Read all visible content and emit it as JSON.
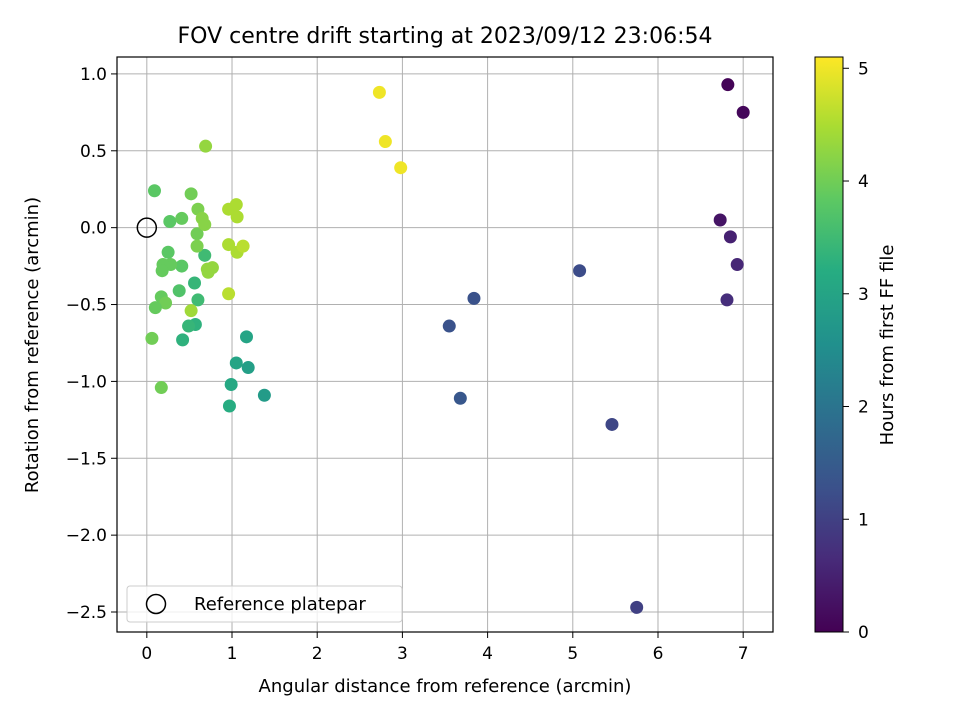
{
  "chart_data": {
    "type": "scatter",
    "title": "FOV centre drift starting at 2023/09/12 23:06:54",
    "xlabel": "Angular distance from reference (arcmin)",
    "ylabel": "Rotation from reference (arcmin)",
    "xlim": [
      -0.35,
      7.35
    ],
    "ylim": [
      -2.63,
      1.11
    ],
    "xticks": [
      0,
      1,
      2,
      3,
      4,
      5,
      6,
      7
    ],
    "yticks": [
      1.0,
      0.5,
      0.0,
      -0.5,
      -1.0,
      -1.5,
      -2.0,
      -2.5
    ],
    "ytick_labels": [
      "1.0",
      "0.5",
      "0.0",
      "−0.5",
      "−1.0",
      "−1.5",
      "−2.0",
      "−2.5"
    ],
    "grid": true,
    "legend": {
      "position": "lower-left",
      "entries": [
        "Reference platepar"
      ]
    },
    "reference_point": {
      "x": 0,
      "y": 0
    },
    "colorbar": {
      "label": "Hours from first FF file",
      "colormap": "viridis",
      "range": [
        0,
        5.1
      ],
      "ticks": [
        0,
        1,
        2,
        3,
        4,
        5
      ]
    },
    "points": [
      {
        "x": 6.82,
        "y": 0.93,
        "c": 0.05
      },
      {
        "x": 7.0,
        "y": 0.75,
        "c": 0.1
      },
      {
        "x": 6.73,
        "y": 0.05,
        "c": 0.3
      },
      {
        "x": 6.85,
        "y": -0.06,
        "c": 0.5
      },
      {
        "x": 6.93,
        "y": -0.24,
        "c": 0.6
      },
      {
        "x": 6.81,
        "y": -0.47,
        "c": 0.7
      },
      {
        "x": 5.75,
        "y": -2.47,
        "c": 1.0
      },
      {
        "x": 5.46,
        "y": -1.28,
        "c": 1.1
      },
      {
        "x": 5.08,
        "y": -0.28,
        "c": 1.2
      },
      {
        "x": 3.84,
        "y": -0.46,
        "c": 1.3
      },
      {
        "x": 3.55,
        "y": -0.64,
        "c": 1.3
      },
      {
        "x": 3.68,
        "y": -1.11,
        "c": 1.4
      },
      {
        "x": 1.38,
        "y": -1.09,
        "c": 2.8
      },
      {
        "x": 1.19,
        "y": -0.91,
        "c": 2.9
      },
      {
        "x": 1.05,
        "y": -0.88,
        "c": 3.0
      },
      {
        "x": 0.99,
        "y": -1.02,
        "c": 3.1
      },
      {
        "x": 0.97,
        "y": -1.16,
        "c": 3.2
      },
      {
        "x": 1.17,
        "y": -0.71,
        "c": 3.0
      },
      {
        "x": 0.57,
        "y": -0.63,
        "c": 3.3
      },
      {
        "x": 0.49,
        "y": -0.64,
        "c": 3.4
      },
      {
        "x": 0.42,
        "y": -0.73,
        "c": 3.3
      },
      {
        "x": 0.6,
        "y": -0.47,
        "c": 3.5
      },
      {
        "x": 0.56,
        "y": -0.36,
        "c": 3.4
      },
      {
        "x": 0.68,
        "y": -0.18,
        "c": 3.5
      },
      {
        "x": 0.38,
        "y": -0.41,
        "c": 3.7
      },
      {
        "x": 0.41,
        "y": -0.25,
        "c": 3.8
      },
      {
        "x": 0.25,
        "y": -0.16,
        "c": 3.8
      },
      {
        "x": 0.28,
        "y": -0.24,
        "c": 3.9
      },
      {
        "x": 0.19,
        "y": -0.24,
        "c": 3.9
      },
      {
        "x": 0.18,
        "y": -0.28,
        "c": 3.9
      },
      {
        "x": 0.17,
        "y": -0.45,
        "c": 3.9
      },
      {
        "x": 0.22,
        "y": -0.49,
        "c": 4.0
      },
      {
        "x": 0.1,
        "y": -0.52,
        "c": 3.9
      },
      {
        "x": 0.06,
        "y": -0.72,
        "c": 4.0
      },
      {
        "x": 0.17,
        "y": -1.04,
        "c": 4.0
      },
      {
        "x": 0.09,
        "y": 0.24,
        "c": 3.8
      },
      {
        "x": 0.27,
        "y": 0.04,
        "c": 3.8
      },
      {
        "x": 0.41,
        "y": 0.06,
        "c": 3.9
      },
      {
        "x": 0.52,
        "y": 0.22,
        "c": 4.0
      },
      {
        "x": 0.59,
        "y": -0.04,
        "c": 4.0
      },
      {
        "x": 0.59,
        "y": -0.12,
        "c": 4.1
      },
      {
        "x": 0.6,
        "y": 0.12,
        "c": 4.1
      },
      {
        "x": 0.65,
        "y": 0.06,
        "c": 4.2
      },
      {
        "x": 0.68,
        "y": 0.02,
        "c": 4.2
      },
      {
        "x": 0.71,
        "y": -0.27,
        "c": 4.3
      },
      {
        "x": 0.72,
        "y": -0.29,
        "c": 4.3
      },
      {
        "x": 0.77,
        "y": -0.26,
        "c": 4.3
      },
      {
        "x": 0.52,
        "y": -0.54,
        "c": 4.4
      },
      {
        "x": 0.69,
        "y": 0.53,
        "c": 4.3
      },
      {
        "x": 0.96,
        "y": 0.12,
        "c": 4.5
      },
      {
        "x": 1.05,
        "y": 0.15,
        "c": 4.5
      },
      {
        "x": 1.06,
        "y": 0.07,
        "c": 4.5
      },
      {
        "x": 0.96,
        "y": -0.11,
        "c": 4.5
      },
      {
        "x": 1.06,
        "y": -0.16,
        "c": 4.5
      },
      {
        "x": 1.13,
        "y": -0.12,
        "c": 4.6
      },
      {
        "x": 0.96,
        "y": -0.43,
        "c": 4.6
      },
      {
        "x": 2.73,
        "y": 0.88,
        "c": 5.0
      },
      {
        "x": 2.8,
        "y": 0.56,
        "c": 5.0
      },
      {
        "x": 2.98,
        "y": 0.39,
        "c": 5.0
      }
    ]
  }
}
